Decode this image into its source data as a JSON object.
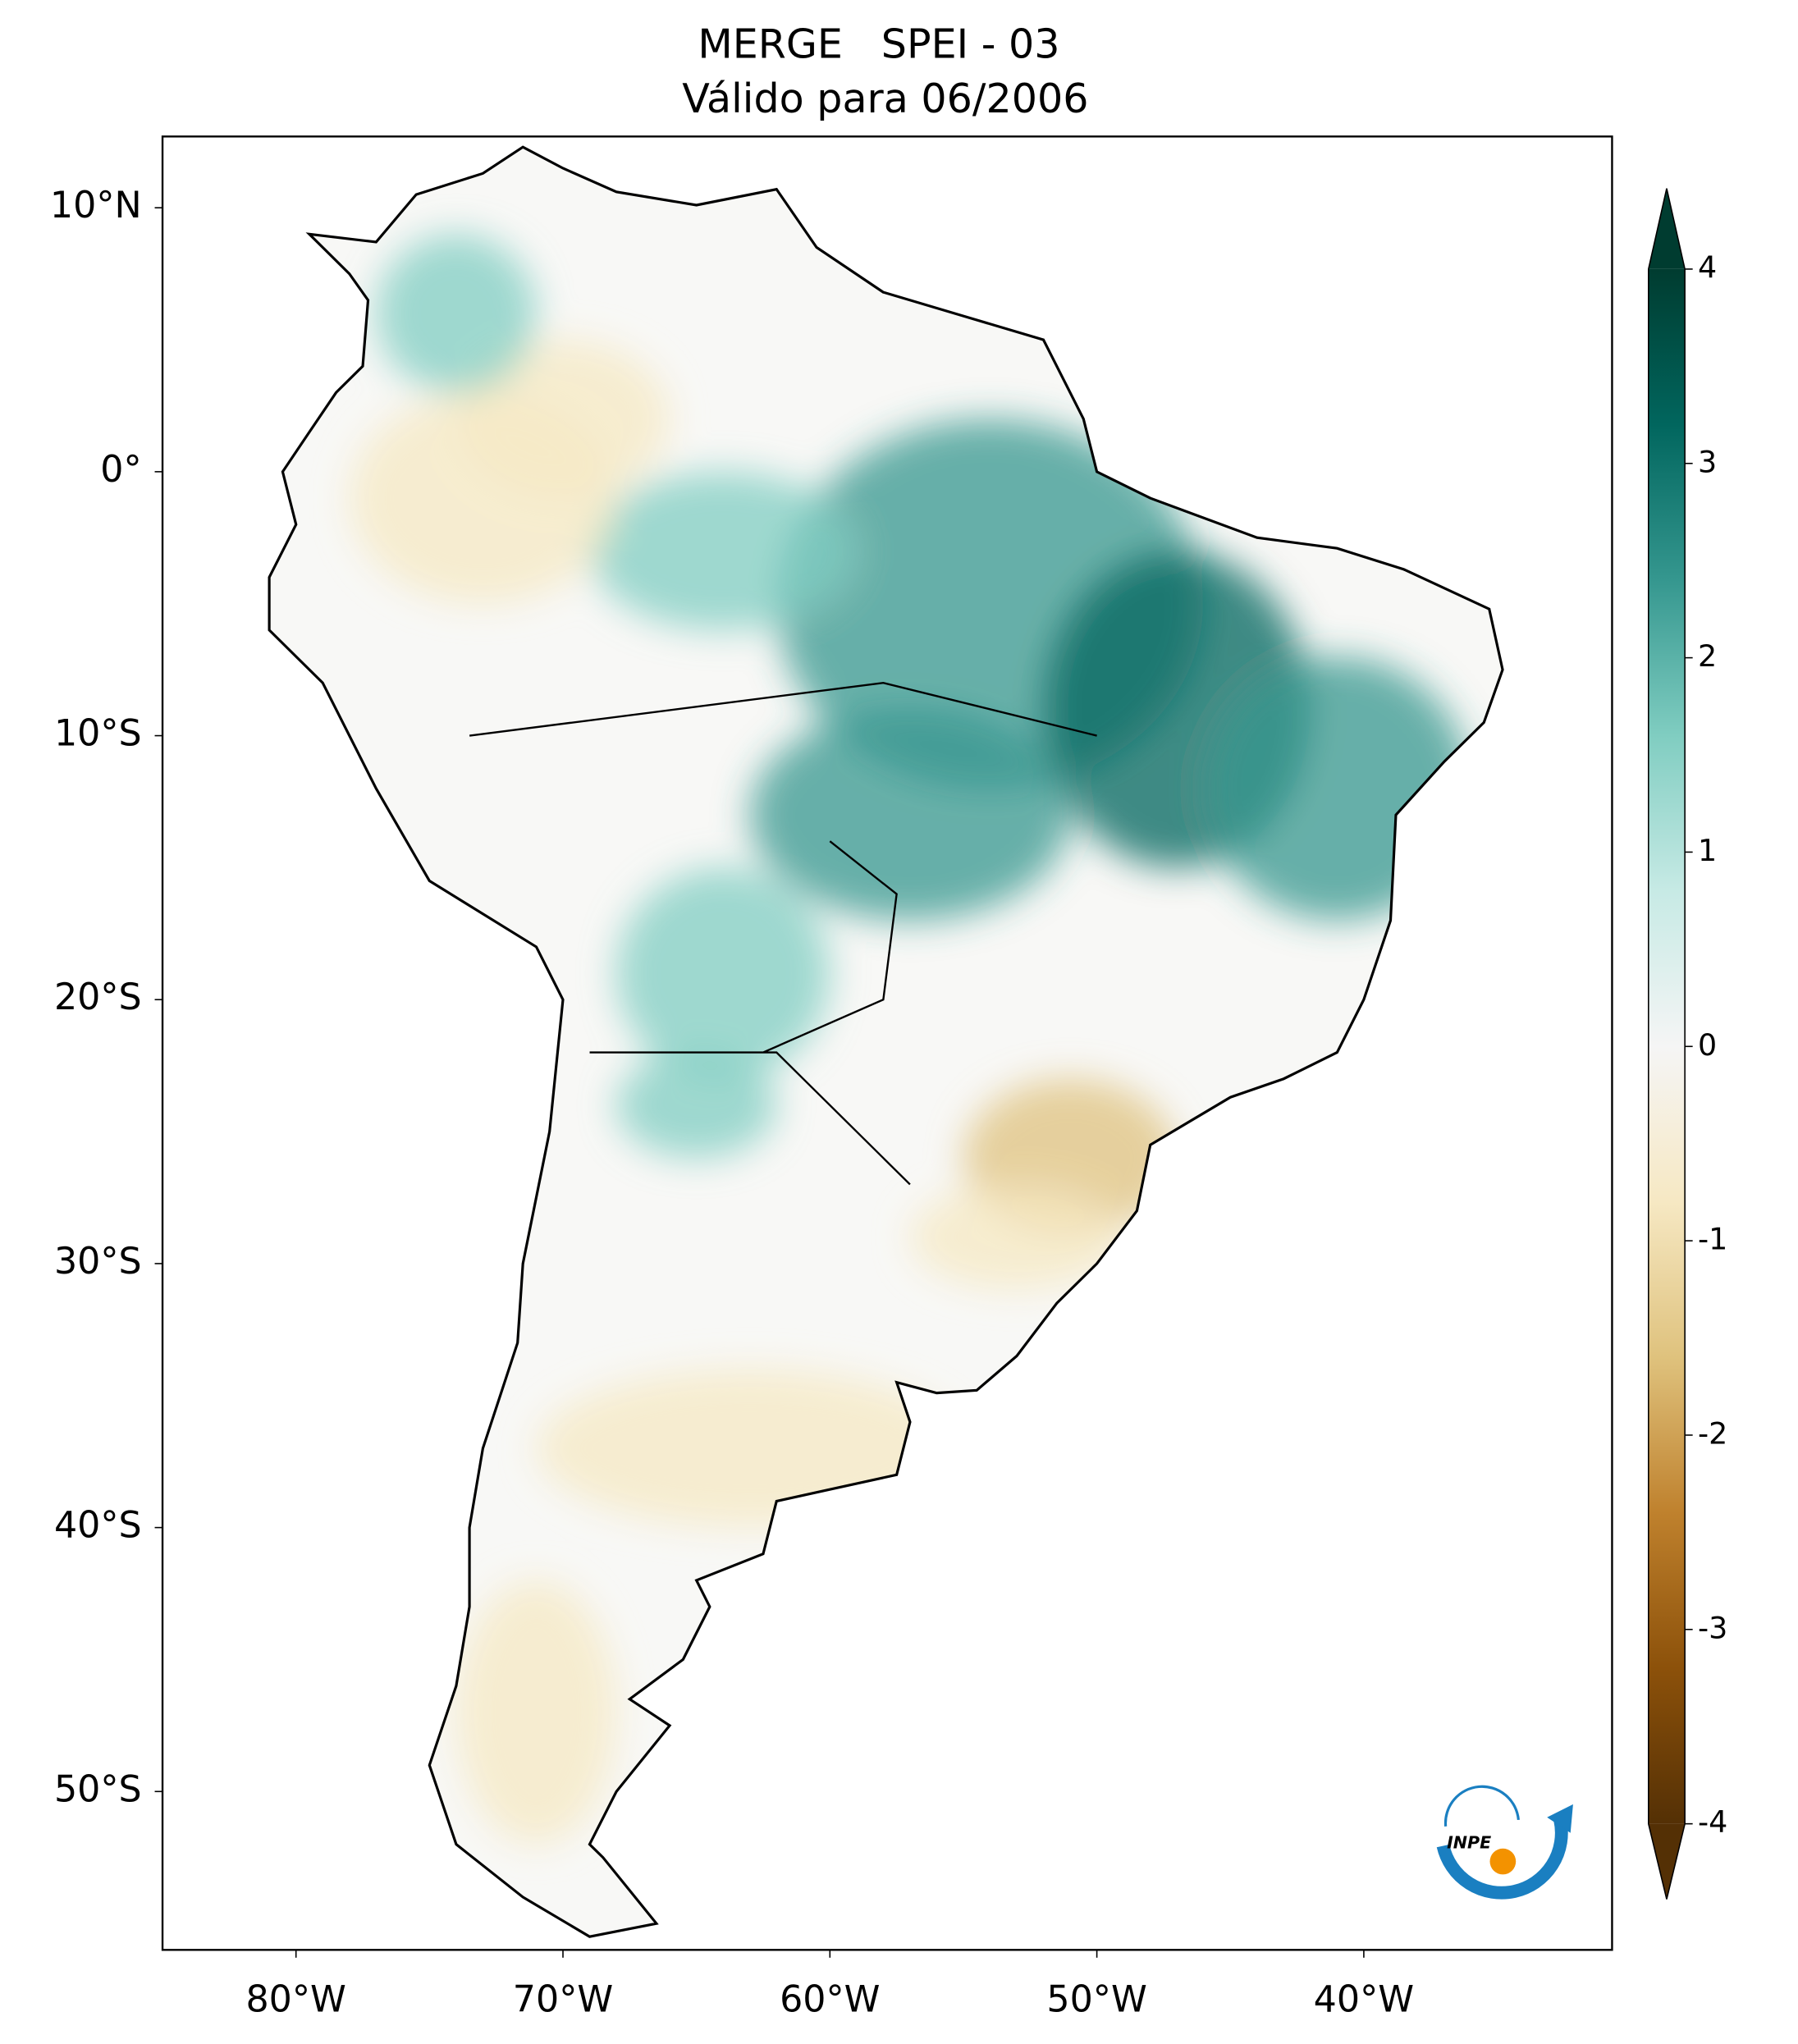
{
  "chart_data": {
    "type": "map",
    "title": "MERGE   SPEI - 03",
    "subtitle": "Válido para 06/2006",
    "xlim": [
      -85,
      -30.7
    ],
    "ylim": [
      -56,
      12.7
    ],
    "xticks": [
      {
        "value": -80,
        "label": "80°W"
      },
      {
        "value": -70,
        "label": "70°W"
      },
      {
        "value": -60,
        "label": "60°W"
      },
      {
        "value": -50,
        "label": "50°W"
      },
      {
        "value": -40,
        "label": "40°W"
      }
    ],
    "yticks": [
      {
        "value": 10,
        "label": "10°N"
      },
      {
        "value": 0,
        "label": "0°"
      },
      {
        "value": -10,
        "label": "10°S"
      },
      {
        "value": -20,
        "label": "20°S"
      },
      {
        "value": -30,
        "label": "30°S"
      },
      {
        "value": -40,
        "label": "40°S"
      },
      {
        "value": -50,
        "label": "50°S"
      }
    ],
    "colorbar": {
      "lim": [
        -4,
        4
      ],
      "ticks": [
        4,
        3,
        2,
        1,
        0,
        -1,
        -2,
        -3,
        -4
      ],
      "extend": "both",
      "colormap": [
        "#543005",
        "#8c510a",
        "#bf812d",
        "#dfc27d",
        "#f6e8c3",
        "#f5f5f5",
        "#c7eae5",
        "#80cdc1",
        "#35978f",
        "#01665e",
        "#003c30"
      ]
    },
    "logo_text": "INPE"
  }
}
